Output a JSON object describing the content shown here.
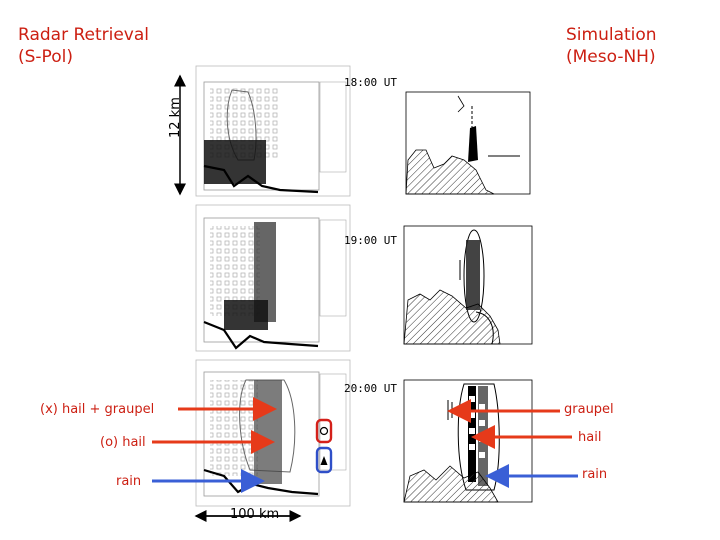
{
  "header": {
    "left_line1": "Radar Retrieval",
    "left_line2": "(S-Pol)",
    "right_line1": "Simulation",
    "right_line2": "(Meso-NH)"
  },
  "times": [
    "18:00 UT",
    "19:00 UT",
    "20:00 UT"
  ],
  "scales": {
    "vertical": "12 km",
    "horizontal": "100 km"
  },
  "annotations": {
    "hail_graupel": "(x) hail + graupel",
    "hail_o": "(o) hail",
    "rain_left": "rain",
    "graupel_right": "graupel",
    "hail_right": "hail",
    "rain_right": "rain"
  },
  "colors": {
    "label": "#cc1f12",
    "red_arrow": "#e63a1a",
    "blue_arrow": "#3a5fd6"
  }
}
